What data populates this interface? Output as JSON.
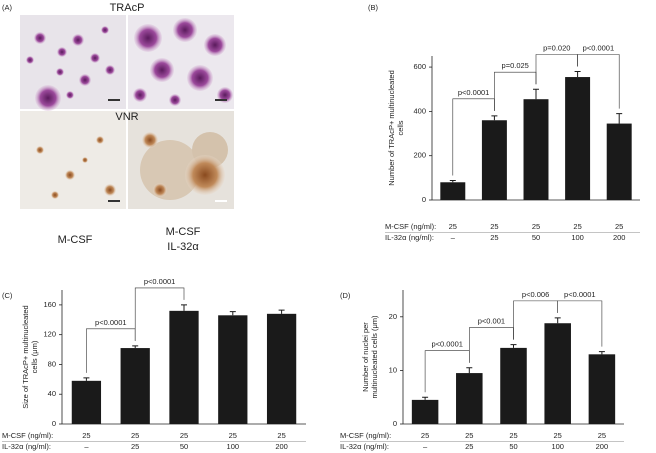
{
  "panel_a": {
    "tag": "(A)",
    "top_label": "TRAcP",
    "bottom_label": "VNR",
    "left_caption": "M-CSF",
    "right_caption": [
      "M-CSF",
      "IL-32α"
    ]
  },
  "chart_data": [
    {
      "type": "bar",
      "tag": "(B)",
      "ylabel": [
        "Number of TRAcP+ multinucleated",
        "cells"
      ],
      "color": "#1a1a1a",
      "categories": [
        "–",
        "25",
        "50",
        "100",
        "200"
      ],
      "values": [
        80,
        360,
        455,
        555,
        345
      ],
      "errors": [
        8,
        20,
        45,
        25,
        45
      ],
      "ylim": [
        0,
        650
      ],
      "yticks": [
        0,
        200,
        400,
        600
      ],
      "rows": [
        {
          "label": "M-CSF (ng/ml):",
          "values": [
            "25",
            "25",
            "25",
            "25",
            "25"
          ]
        },
        {
          "label": "IL-32α (ng/ml):",
          "values": [
            "–",
            "25",
            "50",
            "100",
            "200"
          ]
        }
      ],
      "brackets": [
        {
          "pair": [
            0,
            1
          ],
          "label": "p<0.0001"
        },
        {
          "pair": [
            1,
            2
          ],
          "label": "p=0.025"
        },
        {
          "pair": [
            2,
            3
          ],
          "label": "p=0.020"
        },
        {
          "pair": [
            3,
            4
          ],
          "label": "p<0.0001"
        }
      ]
    },
    {
      "type": "bar",
      "tag": "(C)",
      "ylabel": [
        "Size of TRAcP+ multinucleated",
        "cells (μm)"
      ],
      "color": "#1a1a1a",
      "categories": [
        "–",
        "25",
        "50",
        "100",
        "200"
      ],
      "values": [
        58,
        102,
        152,
        146,
        148
      ],
      "errors": [
        4,
        3,
        8,
        5,
        5
      ],
      "ylim": [
        0,
        180
      ],
      "yticks": [
        0,
        40,
        80,
        120,
        160
      ],
      "rows": [
        {
          "label": "M-CSF (ng/ml):",
          "values": [
            "25",
            "25",
            "25",
            "25",
            "25"
          ]
        },
        {
          "label": "IL-32α (ng/ml):",
          "values": [
            "–",
            "25",
            "50",
            "100",
            "200"
          ]
        }
      ],
      "brackets": [
        {
          "pair": [
            0,
            1
          ],
          "label": "p<0.0001"
        },
        {
          "pair": [
            1,
            2
          ],
          "label": "p<0.0001"
        }
      ]
    },
    {
      "type": "bar",
      "tag": "(D)",
      "ylabel": [
        "Number of nuclei per",
        "multinucleated cells (μm)"
      ],
      "color": "#1a1a1a",
      "categories": [
        "–",
        "25",
        "50",
        "100",
        "200"
      ],
      "values": [
        4.5,
        9.5,
        14.2,
        18.8,
        13.0
      ],
      "errors": [
        0.5,
        1,
        0.6,
        1,
        0.5
      ],
      "ylim": [
        0,
        25
      ],
      "yticks": [
        0,
        10,
        20
      ],
      "rows": [
        {
          "label": "M-CSF (ng/ml):",
          "values": [
            "25",
            "25",
            "25",
            "25",
            "25"
          ]
        },
        {
          "label": "IL-32α (ng/ml):",
          "values": [
            "–",
            "25",
            "50",
            "100",
            "200"
          ]
        }
      ],
      "brackets": [
        {
          "pair": [
            0,
            1
          ],
          "label": "p<0.0001"
        },
        {
          "pair": [
            1,
            2
          ],
          "label": "p<0.001"
        },
        {
          "pair": [
            2,
            3
          ],
          "label": "p<0.006"
        },
        {
          "pair": [
            3,
            4
          ],
          "label": "p<0.0001"
        }
      ]
    }
  ]
}
